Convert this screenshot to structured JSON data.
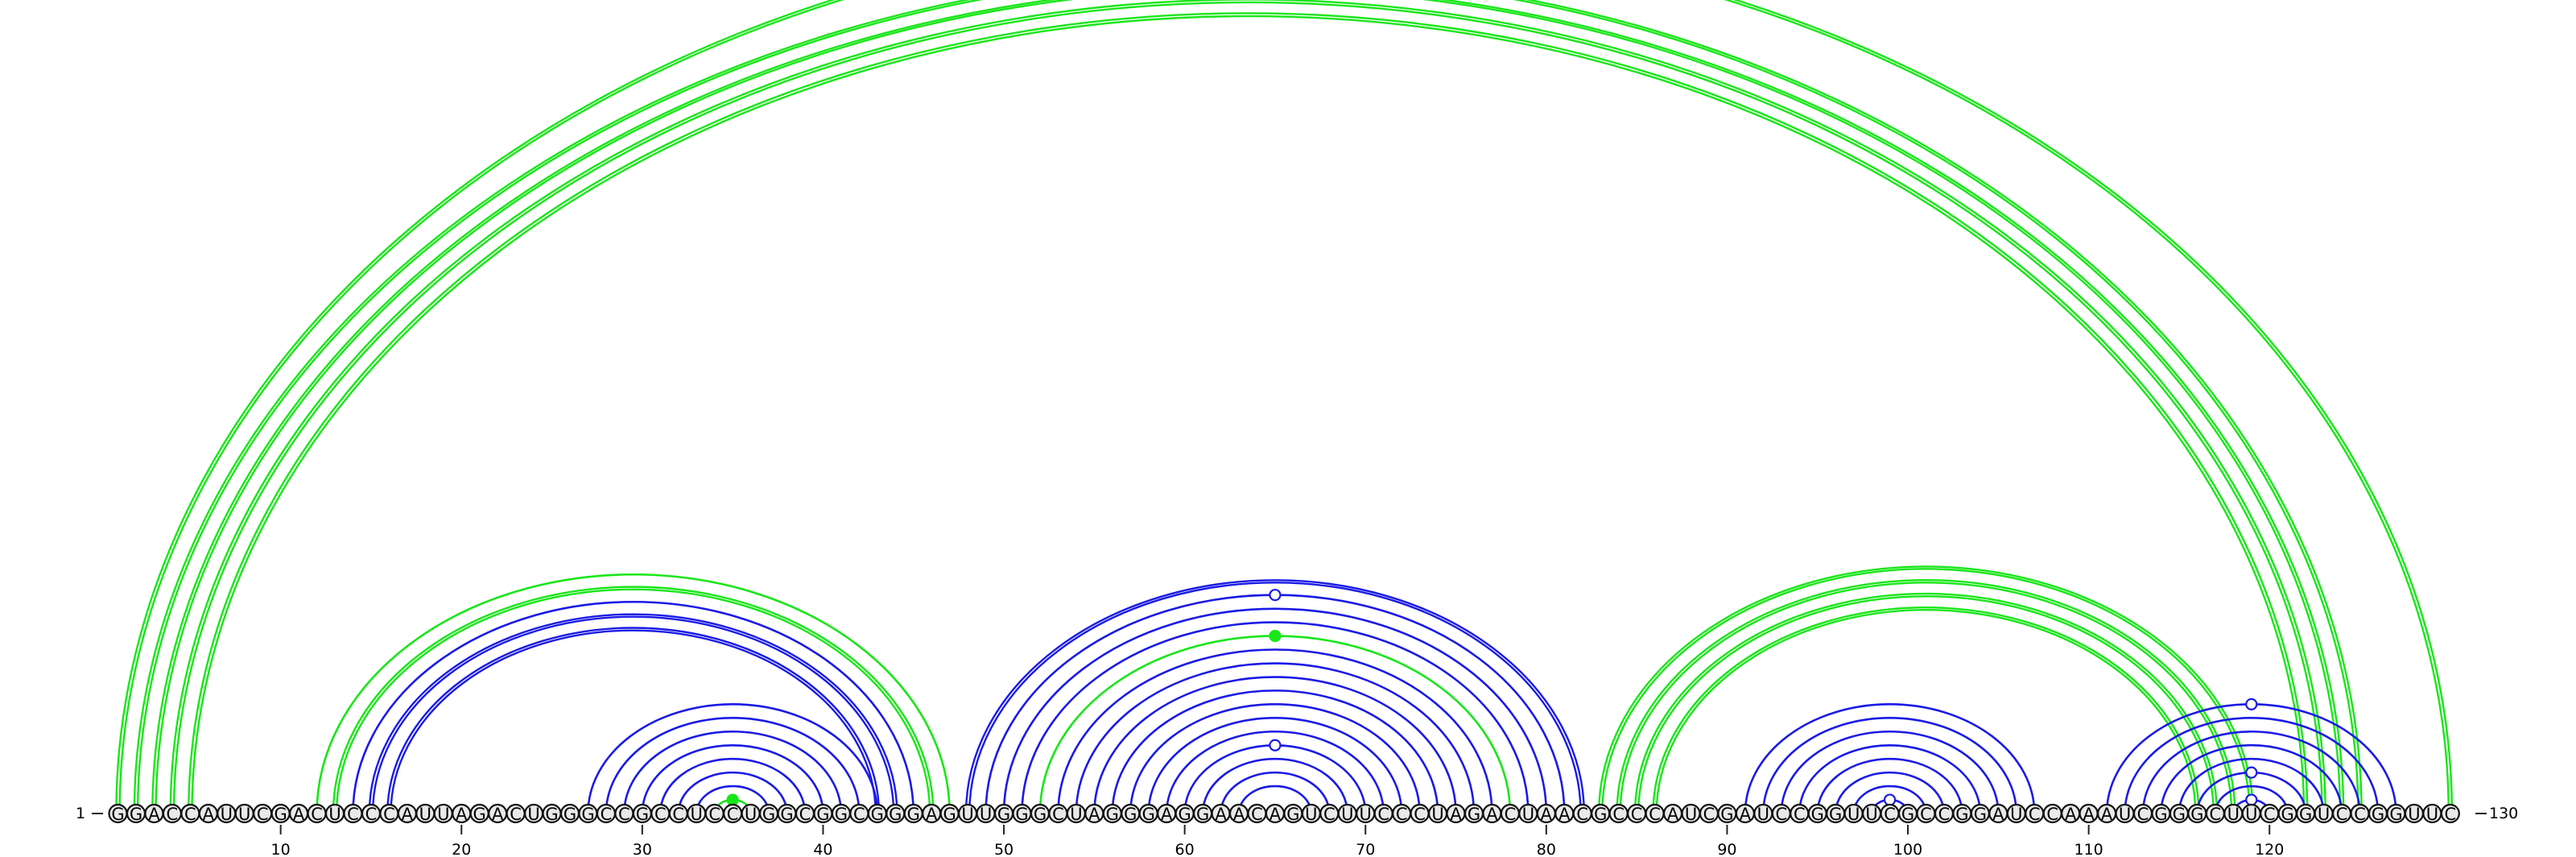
{
  "diagram": {
    "type": "rna-arc-diagram",
    "sequence": "GGACCAUUCGACUCCCAUUAGACUGGGCCGCCUCCUGGCGGCGGGAGUUGGGCUAGGGAGGAACAGUCUUCCCUAGACUAACGCCCAUCGAUCCGGUUCGCCGGAUCCAAAUCGGGCUUCGGUCCGGUUC",
    "start_label": "1",
    "end_label": "130",
    "ticks": [
      10,
      20,
      30,
      40,
      50,
      60,
      70,
      80,
      90,
      100,
      110,
      120
    ],
    "colors": {
      "blue": "#1a1ae6",
      "green": "#19e619"
    },
    "arcs": [
      {
        "i": 1,
        "j": 130,
        "color": "green",
        "style": "double",
        "marker": "open"
      },
      {
        "i": 2,
        "j": 125,
        "color": "green",
        "style": "double"
      },
      {
        "i": 3,
        "j": 124,
        "color": "green",
        "style": "double"
      },
      {
        "i": 4,
        "j": 123,
        "color": "green",
        "style": "double"
      },
      {
        "i": 5,
        "j": 122,
        "color": "green",
        "style": "double"
      },
      {
        "i": 12,
        "j": 47,
        "color": "green",
        "style": "single"
      },
      {
        "i": 13,
        "j": 46,
        "color": "green",
        "style": "double"
      },
      {
        "i": 14,
        "j": 45,
        "color": "blue",
        "style": "single"
      },
      {
        "i": 15,
        "j": 44,
        "color": "blue",
        "style": "double"
      },
      {
        "i": 16,
        "j": 43,
        "color": "blue",
        "style": "double"
      },
      {
        "i": 27,
        "j": 43,
        "color": "blue",
        "style": "single"
      },
      {
        "i": 28,
        "j": 42,
        "color": "blue",
        "style": "single"
      },
      {
        "i": 29,
        "j": 41,
        "color": "blue",
        "style": "single"
      },
      {
        "i": 30,
        "j": 40,
        "color": "blue",
        "style": "single"
      },
      {
        "i": 31,
        "j": 39,
        "color": "blue",
        "style": "single"
      },
      {
        "i": 32,
        "j": 38,
        "color": "blue",
        "style": "single"
      },
      {
        "i": 33,
        "j": 37,
        "color": "blue",
        "style": "single"
      },
      {
        "i": 34,
        "j": 36,
        "color": "green",
        "style": "single",
        "marker": "filled"
      },
      {
        "i": 48,
        "j": 82,
        "color": "blue",
        "style": "double"
      },
      {
        "i": 49,
        "j": 81,
        "color": "blue",
        "style": "single",
        "marker": "open"
      },
      {
        "i": 50,
        "j": 80,
        "color": "blue",
        "style": "single"
      },
      {
        "i": 51,
        "j": 79,
        "color": "blue",
        "style": "single"
      },
      {
        "i": 52,
        "j": 78,
        "color": "green",
        "style": "single",
        "marker": "filled"
      },
      {
        "i": 53,
        "j": 77,
        "color": "blue",
        "style": "single"
      },
      {
        "i": 54,
        "j": 76,
        "color": "blue",
        "style": "single"
      },
      {
        "i": 55,
        "j": 75,
        "color": "blue",
        "style": "single"
      },
      {
        "i": 56,
        "j": 74,
        "color": "blue",
        "style": "single"
      },
      {
        "i": 57,
        "j": 73,
        "color": "blue",
        "style": "single"
      },
      {
        "i": 58,
        "j": 72,
        "color": "blue",
        "style": "single"
      },
      {
        "i": 59,
        "j": 71,
        "color": "blue",
        "style": "single"
      },
      {
        "i": 60,
        "j": 70,
        "color": "blue",
        "style": "single",
        "marker": "open"
      },
      {
        "i": 61,
        "j": 69,
        "color": "blue",
        "style": "single"
      },
      {
        "i": 62,
        "j": 68,
        "color": "blue",
        "style": "single"
      },
      {
        "i": 63,
        "j": 67,
        "color": "blue",
        "style": "single"
      },
      {
        "i": 83,
        "j": 119,
        "color": "green",
        "style": "double"
      },
      {
        "i": 84,
        "j": 118,
        "color": "green",
        "style": "double"
      },
      {
        "i": 85,
        "j": 117,
        "color": "green",
        "style": "double"
      },
      {
        "i": 86,
        "j": 116,
        "color": "green",
        "style": "double"
      },
      {
        "i": 91,
        "j": 107,
        "color": "blue",
        "style": "single"
      },
      {
        "i": 92,
        "j": 106,
        "color": "blue",
        "style": "single"
      },
      {
        "i": 93,
        "j": 105,
        "color": "blue",
        "style": "single"
      },
      {
        "i": 94,
        "j": 104,
        "color": "blue",
        "style": "single"
      },
      {
        "i": 95,
        "j": 103,
        "color": "blue",
        "style": "single"
      },
      {
        "i": 96,
        "j": 102,
        "color": "blue",
        "style": "single"
      },
      {
        "i": 97,
        "j": 101,
        "color": "blue",
        "style": "single"
      },
      {
        "i": 98,
        "j": 100,
        "color": "blue",
        "style": "single",
        "marker": "open"
      },
      {
        "i": 111,
        "j": 127,
        "color": "blue",
        "style": "single",
        "marker": "open"
      },
      {
        "i": 112,
        "j": 126,
        "color": "blue",
        "style": "single"
      },
      {
        "i": 113,
        "j": 125,
        "color": "blue",
        "style": "single"
      },
      {
        "i": 114,
        "j": 124,
        "color": "blue",
        "style": "single"
      },
      {
        "i": 115,
        "j": 123,
        "color": "blue",
        "style": "single"
      },
      {
        "i": 116,
        "j": 122,
        "color": "blue",
        "style": "single",
        "marker": "open"
      },
      {
        "i": 117,
        "j": 121,
        "color": "blue",
        "style": "single"
      },
      {
        "i": 118,
        "j": 120,
        "color": "blue",
        "style": "single",
        "marker": "open"
      }
    ]
  }
}
